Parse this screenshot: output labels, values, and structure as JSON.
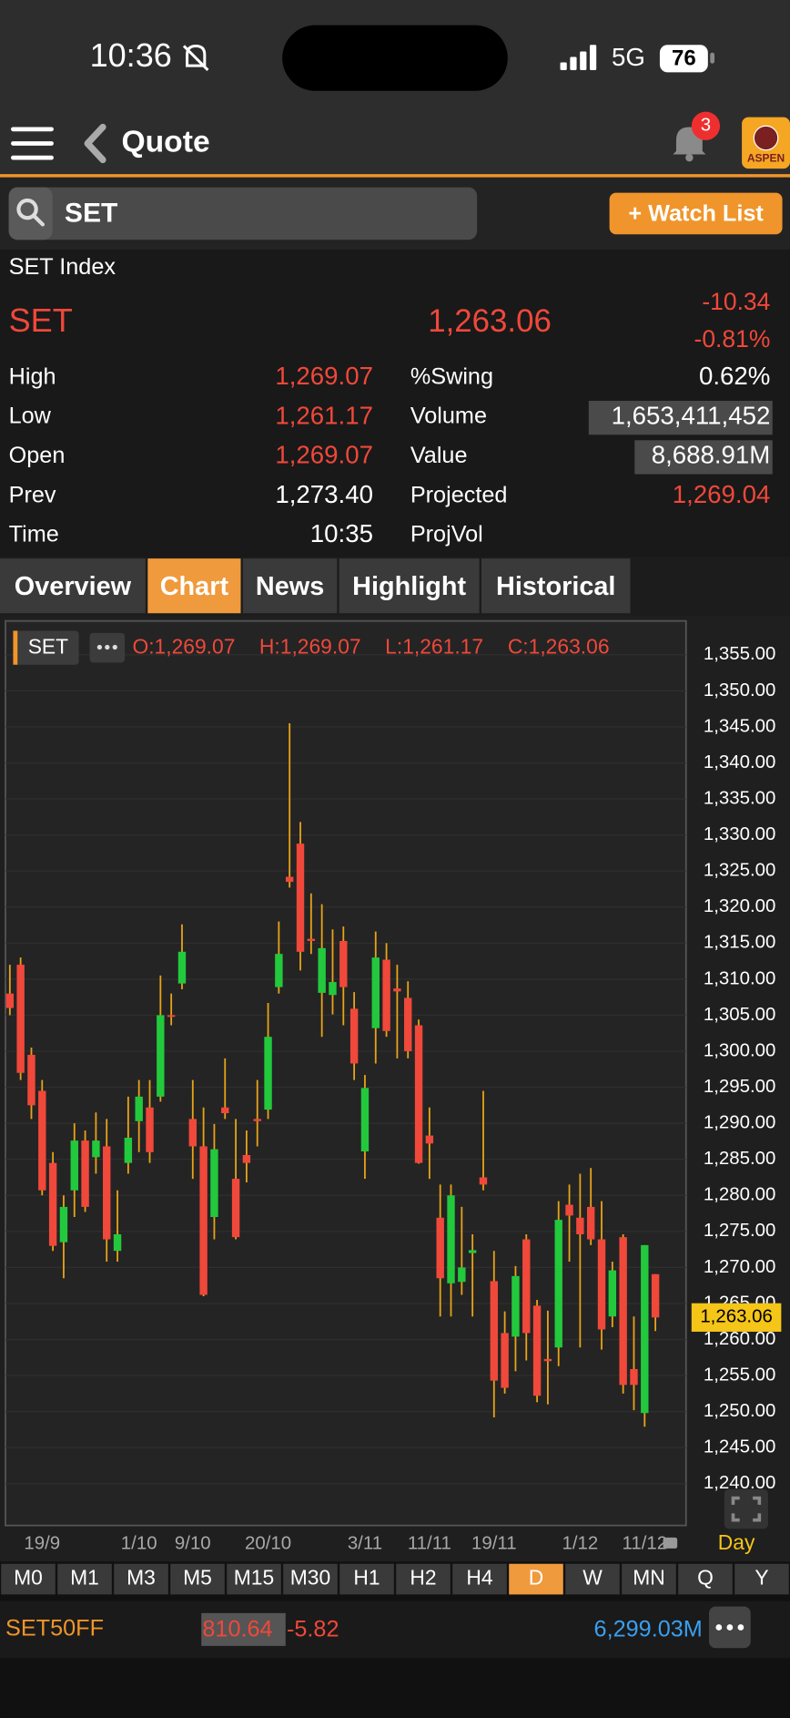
{
  "status_bar": {
    "time": "10:36",
    "network": "5G",
    "battery": "76"
  },
  "header": {
    "title": "Quote",
    "notification_count": "3",
    "logo": "ASPEN"
  },
  "search": {
    "query": "SET",
    "watch_list_button": "+ Watch List"
  },
  "quote": {
    "name": "SET Index",
    "symbol": "SET",
    "last": "1,263.06",
    "change": "-10.34",
    "change_pct": "-0.81%",
    "rows": [
      {
        "label": "High",
        "value": "1,269.07",
        "label2": "%Swing",
        "value2": "0.62%"
      },
      {
        "label": "Low",
        "value": "1,261.17",
        "label2": "Volume",
        "value2": "1,653,411,452"
      },
      {
        "label": "Open",
        "value": "1,269.07",
        "label2": "Value",
        "value2": "8,688.91M"
      },
      {
        "label": "Prev",
        "value": "1,273.40",
        "label2": "Projected",
        "value2": "1,269.04"
      },
      {
        "label": "Time",
        "value": "10:35",
        "label2": "ProjVol"
      }
    ]
  },
  "tabs": [
    "Overview",
    "Chart",
    "News",
    "Highlight",
    "Historical"
  ],
  "active_tab": 1,
  "chart_data": {
    "type": "candlestick",
    "symbol": "SET",
    "ohlc_labels": [
      "O:1,269.07",
      "H:1,269.07",
      "L:1,261.17",
      "C:1,263.06"
    ],
    "categories": [
      null,
      null,
      null,
      "19/9",
      null,
      null,
      null,
      null,
      null,
      null,
      null,
      null,
      "1/10",
      null,
      null,
      null,
      null,
      "9/10",
      null,
      null,
      null,
      null,
      null,
      null,
      "20/10",
      null,
      null,
      null,
      null,
      null,
      null,
      null,
      null,
      "3/11",
      null,
      null,
      null,
      null,
      null,
      "11/11",
      null,
      null,
      null,
      null,
      null,
      "19/11",
      null,
      null,
      null,
      null,
      null,
      null,
      null,
      "1/12",
      null,
      null,
      null,
      null,
      null,
      "11/12",
      null
    ],
    "open": [
      1308,
      1312,
      1299.5,
      1294.5,
      1284.5,
      1273.5,
      1280.7,
      1287.6,
      1285.3,
      1286.8,
      1272.3,
      1284.5,
      1290.3,
      1292.2,
      1293.7,
      1305,
      1309.4,
      1290.6,
      1286.8,
      1277,
      1292.2,
      1282.3,
      1285.6,
      1290.6,
      1291.9,
      1308.9,
      1324.2,
      1328.8,
      1315.6,
      1308.1,
      1307.8,
      1315.3,
      1305.9,
      1286.1,
      1303.2,
      1312.7,
      1308.7,
      1307.4,
      1303.6,
      1288.3,
      1276.9,
      1267.8,
      1268,
      1272,
      1282.5,
      1268.1,
      1260.9,
      1260.4,
      1273.9,
      1264.7,
      1257.3,
      1258.9,
      1278.7,
      1276.9,
      1278.4,
      1273.9,
      1263.2,
      1274.2,
      1255.9,
      1249.8,
      1269.07
    ],
    "high": [
      1312,
      1313,
      1300.5,
      1296,
      1286,
      1280,
      1290,
      1289,
      1291.5,
      1290.6,
      1280.7,
      1293.7,
      1296,
      1296,
      1310.5,
      1308,
      1317.6,
      1296,
      1292.2,
      1289.9,
      1299,
      1290.6,
      1289,
      1296,
      1306.7,
      1318,
      1345.5,
      1331.8,
      1321.9,
      1320.4,
      1316.9,
      1317.3,
      1308.2,
      1296.7,
      1316.6,
      1315,
      1312,
      1309.7,
      1304.4,
      1292.2,
      1281.5,
      1281.5,
      1278.4,
      1274.6,
      1294.5,
      1272.3,
      1263.9,
      1270.2,
      1274.6,
      1265.5,
      1264,
      1279.2,
      1281.5,
      1283,
      1283.8,
      1279.2,
      1270.8,
      1274.6,
      1263.2,
      1273.1,
      1269.07
    ],
    "low": [
      1305,
      1296,
      1290.6,
      1280,
      1272.3,
      1268.5,
      1277,
      1277.7,
      1283,
      1270.8,
      1270.8,
      1283,
      1286,
      1284.5,
      1293,
      1303.6,
      1308.6,
      1282.3,
      1266,
      1273.9,
      1290.6,
      1273.9,
      1281.8,
      1286.8,
      1290.6,
      1308,
      1322.7,
      1311.2,
      1313.5,
      1302,
      1305.1,
      1303.6,
      1296,
      1282.3,
      1298.3,
      1302,
      1299,
      1299,
      1284.4,
      1282.3,
      1263.2,
      1263.2,
      1266.2,
      1263.2,
      1280.7,
      1249.2,
      1252.5,
      1255.6,
      1257.1,
      1251.3,
      1251,
      1256.3,
      1270.8,
      1258.9,
      1273.1,
      1258.6,
      1261.7,
      1252.5,
      1250.2,
      1247.9,
      1261.17
    ],
    "close": [
      1306,
      1297,
      1292.5,
      1280.7,
      1273,
      1278.4,
      1287.6,
      1278.4,
      1287.6,
      1273.9,
      1274.6,
      1288,
      1293.7,
      1286,
      1305,
      1304.8,
      1313.8,
      1286.8,
      1266.2,
      1286.4,
      1291.4,
      1274.2,
      1284.5,
      1290.3,
      1302,
      1313.5,
      1323.5,
      1313.8,
      1315.3,
      1314.3,
      1309.6,
      1308.9,
      1298.3,
      1294.9,
      1313,
      1302.8,
      1308.3,
      1300,
      1284.5,
      1287.2,
      1268.5,
      1280,
      1270,
      1272.4,
      1281.5,
      1254.3,
      1253.3,
      1268.8,
      1260.9,
      1252.2,
      1257,
      1276.6,
      1277.2,
      1274.6,
      1273.9,
      1261.4,
      1269.6,
      1253.7,
      1253.7,
      1273.1,
      1263.06
    ],
    "up_color": "#22c93c",
    "down_color": "#f0483a",
    "wick_color": "#e8a317",
    "ylim": [
      1234.2,
      1359.7
    ],
    "yticks": [
      {
        "value": 1240,
        "label": "1,240.00"
      },
      {
        "value": 1245,
        "label": "1,245.00"
      },
      {
        "value": 1250,
        "label": "1,250.00"
      },
      {
        "value": 1255,
        "label": "1,255.00"
      },
      {
        "value": 1260,
        "label": "1,260.00"
      },
      {
        "value": 1265,
        "label": "1,265.00"
      },
      {
        "value": 1270,
        "label": "1,270.00"
      },
      {
        "value": 1275,
        "label": "1,275.00"
      },
      {
        "value": 1280,
        "label": "1,280.00"
      },
      {
        "value": 1285,
        "label": "1,285.00"
      },
      {
        "value": 1290,
        "label": "1,290.00"
      },
      {
        "value": 1295,
        "label": "1,295.00"
      },
      {
        "value": 1300,
        "label": "1,300.00"
      },
      {
        "value": 1305,
        "label": "1,305.00"
      },
      {
        "value": 1310,
        "label": "1,310.00"
      },
      {
        "value": 1315,
        "label": "1,315.00"
      },
      {
        "value": 1320,
        "label": "1,320.00"
      },
      {
        "value": 1325,
        "label": "1,325.00"
      },
      {
        "value": 1330,
        "label": "1,330.00"
      },
      {
        "value": 1335,
        "label": "1,335.00"
      },
      {
        "value": 1340,
        "label": "1,340.00"
      },
      {
        "value": 1345,
        "label": "1,345.00"
      },
      {
        "value": 1350,
        "label": "1,350.00"
      },
      {
        "value": 1355,
        "label": "1,355.00"
      }
    ],
    "last_price": {
      "value": 1263.06,
      "label": "1,263.06"
    },
    "grid": true,
    "period_label": "Day"
  },
  "timeframes": [
    "M0",
    "M1",
    "M3",
    "M5",
    "M15",
    "M30",
    "H1",
    "H2",
    "H4",
    "D",
    "W",
    "MN",
    "Q",
    "Y"
  ],
  "active_timeframe": 9,
  "ticker": {
    "symbol": "SET50FF",
    "last": "810.64",
    "change": "-5.82",
    "value": "6,299.03M"
  }
}
